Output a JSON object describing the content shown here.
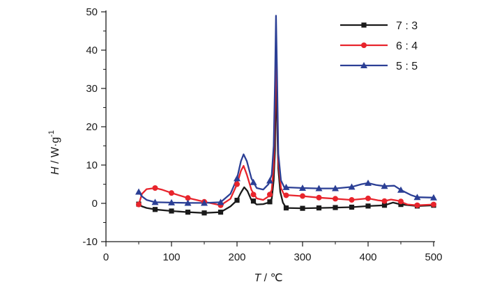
{
  "chart_data": {
    "type": "line",
    "title": "",
    "xlabel": {
      "symbol": "T",
      "unit": " / ℃"
    },
    "ylabel": {
      "symbol": "H",
      "unit": " / W·g",
      "sup": "-1"
    },
    "xlim": [
      0,
      500
    ],
    "ylim": [
      -10,
      50
    ],
    "xticks": [
      "0",
      "100",
      "200",
      "300",
      "400",
      "500"
    ],
    "yticks": [
      "-10",
      "0",
      "10",
      "20",
      "30",
      "40",
      "50"
    ],
    "grid": false,
    "legend_position": "top-right",
    "series": [
      {
        "name": "7 : 3",
        "color": "#1a1a1a",
        "marker": "square",
        "points": [
          [
            50,
            -0.2
          ],
          [
            55,
            -0.8
          ],
          [
            62,
            -1.2
          ],
          [
            75,
            -1.6
          ],
          [
            100,
            -2.0
          ],
          [
            125,
            -2.3
          ],
          [
            150,
            -2.5
          ],
          [
            175,
            -2.3
          ],
          [
            190,
            -0.8
          ],
          [
            200,
            0.8
          ],
          [
            206,
            2.8
          ],
          [
            211,
            4.2
          ],
          [
            216,
            3.2
          ],
          [
            222,
            0.8
          ],
          [
            230,
            -0.3
          ],
          [
            240,
            -0.2
          ],
          [
            248,
            0.2
          ],
          [
            253,
            1.2
          ],
          [
            256,
            6
          ],
          [
            258,
            14
          ],
          [
            259.5,
            40
          ],
          [
            261,
            22
          ],
          [
            263,
            9
          ],
          [
            266,
            3
          ],
          [
            270,
            0.2
          ],
          [
            275,
            -1.2
          ],
          [
            300,
            -1.3
          ],
          [
            325,
            -1.2
          ],
          [
            350,
            -1.1
          ],
          [
            375,
            -1.0
          ],
          [
            400,
            -0.7
          ],
          [
            425,
            -0.5
          ],
          [
            438,
            0.2
          ],
          [
            450,
            -0.3
          ],
          [
            475,
            -0.7
          ],
          [
            500,
            -0.5
          ]
        ],
        "markers": [
          [
            50,
            -0.2
          ],
          [
            75,
            -1.6
          ],
          [
            100,
            -2.0
          ],
          [
            125,
            -2.3
          ],
          [
            150,
            -2.5
          ],
          [
            175,
            -2.3
          ],
          [
            200,
            0.8
          ],
          [
            225,
            0.6
          ],
          [
            250,
            0.4
          ],
          [
            275,
            -1.2
          ],
          [
            300,
            -1.3
          ],
          [
            325,
            -1.2
          ],
          [
            350,
            -1.1
          ],
          [
            375,
            -1.0
          ],
          [
            400,
            -0.7
          ],
          [
            425,
            -0.5
          ],
          [
            450,
            -0.3
          ],
          [
            475,
            -0.7
          ],
          [
            500,
            -0.5
          ]
        ]
      },
      {
        "name": "6 : 4",
        "color": "#e8242c",
        "marker": "circle",
        "points": [
          [
            50,
            -0.3
          ],
          [
            55,
            2.5
          ],
          [
            62,
            3.7
          ],
          [
            75,
            4.0
          ],
          [
            85,
            3.6
          ],
          [
            100,
            2.7
          ],
          [
            125,
            1.4
          ],
          [
            150,
            0.4
          ],
          [
            175,
            -0.5
          ],
          [
            190,
            1.2
          ],
          [
            200,
            5.0
          ],
          [
            206,
            8.5
          ],
          [
            210,
            9.8
          ],
          [
            215,
            7.5
          ],
          [
            222,
            3.5
          ],
          [
            230,
            1.3
          ],
          [
            240,
            0.9
          ],
          [
            248,
            1.8
          ],
          [
            253,
            3.5
          ],
          [
            256,
            10
          ],
          [
            258,
            25
          ],
          [
            259.5,
            45
          ],
          [
            261,
            30
          ],
          [
            263,
            11
          ],
          [
            267,
            4
          ],
          [
            272,
            2.2
          ],
          [
            300,
            1.9
          ],
          [
            325,
            1.5
          ],
          [
            350,
            1.2
          ],
          [
            375,
            0.9
          ],
          [
            400,
            1.3
          ],
          [
            415,
            0.8
          ],
          [
            425,
            0.6
          ],
          [
            435,
            1.0
          ],
          [
            445,
            0.7
          ],
          [
            460,
            -0.3
          ],
          [
            475,
            -0.5
          ],
          [
            500,
            -0.3
          ]
        ],
        "markers": [
          [
            50,
            -0.3
          ],
          [
            75,
            4.0
          ],
          [
            100,
            2.7
          ],
          [
            125,
            1.4
          ],
          [
            150,
            0.4
          ],
          [
            175,
            -0.5
          ],
          [
            200,
            5.0
          ],
          [
            225,
            2.3
          ],
          [
            250,
            2.3
          ],
          [
            275,
            2.1
          ],
          [
            300,
            1.9
          ],
          [
            325,
            1.5
          ],
          [
            350,
            1.2
          ],
          [
            375,
            0.9
          ],
          [
            400,
            1.3
          ],
          [
            425,
            0.6
          ],
          [
            450,
            0.5
          ],
          [
            475,
            -0.5
          ],
          [
            500,
            -0.3
          ]
        ]
      },
      {
        "name": "5 : 5",
        "color": "#2b3f95",
        "marker": "triangle",
        "points": [
          [
            50,
            3.0
          ],
          [
            55,
            1.8
          ],
          [
            62,
            0.9
          ],
          [
            75,
            0.3
          ],
          [
            100,
            0.2
          ],
          [
            125,
            0.1
          ],
          [
            150,
            0.1
          ],
          [
            175,
            0.3
          ],
          [
            190,
            2.5
          ],
          [
            200,
            6.5
          ],
          [
            206,
            11
          ],
          [
            210,
            12.8
          ],
          [
            215,
            11
          ],
          [
            222,
            6.5
          ],
          [
            230,
            4.0
          ],
          [
            240,
            3.6
          ],
          [
            248,
            5.0
          ],
          [
            253,
            7.5
          ],
          [
            256,
            15
          ],
          [
            258,
            32
          ],
          [
            259.5,
            49
          ],
          [
            261,
            35
          ],
          [
            263,
            13
          ],
          [
            267,
            6
          ],
          [
            272,
            4.2
          ],
          [
            300,
            4.0
          ],
          [
            325,
            3.9
          ],
          [
            350,
            3.9
          ],
          [
            375,
            4.3
          ],
          [
            390,
            5.0
          ],
          [
            400,
            5.3
          ],
          [
            412,
            4.8
          ],
          [
            425,
            4.5
          ],
          [
            440,
            4.6
          ],
          [
            450,
            3.5
          ],
          [
            465,
            2.2
          ],
          [
            475,
            1.6
          ],
          [
            500,
            1.5
          ]
        ],
        "markers": [
          [
            50,
            3.0
          ],
          [
            75,
            0.3
          ],
          [
            100,
            0.2
          ],
          [
            125,
            0.1
          ],
          [
            150,
            0.1
          ],
          [
            175,
            0.3
          ],
          [
            200,
            6.5
          ],
          [
            225,
            5.5
          ],
          [
            250,
            5.9
          ],
          [
            275,
            4.2
          ],
          [
            300,
            4.0
          ],
          [
            325,
            3.9
          ],
          [
            350,
            3.9
          ],
          [
            375,
            4.3
          ],
          [
            400,
            5.3
          ],
          [
            425,
            4.5
          ],
          [
            450,
            3.5
          ],
          [
            475,
            1.6
          ],
          [
            500,
            1.5
          ]
        ]
      }
    ]
  }
}
